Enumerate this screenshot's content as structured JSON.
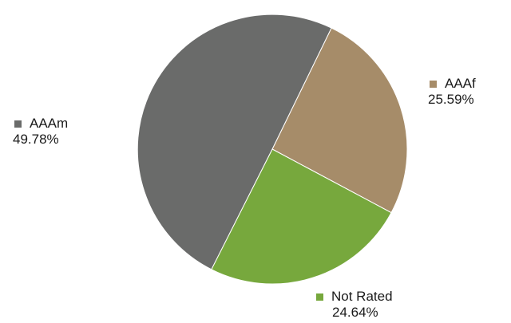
{
  "chart_data": {
    "type": "pie",
    "title": "",
    "start_angle_deg": 26,
    "direction": "clockwise",
    "slices": [
      {
        "label": "AAAf",
        "value": 25.59,
        "value_label": "25.59%",
        "color": "#A68C69"
      },
      {
        "label": "Not Rated",
        "value": 24.64,
        "value_label": "24.64%",
        "color": "#77A83D"
      },
      {
        "label": "AAAm",
        "value": 49.78,
        "value_label": "49.78%",
        "color": "#6A6B6A"
      }
    ],
    "legend": "beside-slices"
  }
}
